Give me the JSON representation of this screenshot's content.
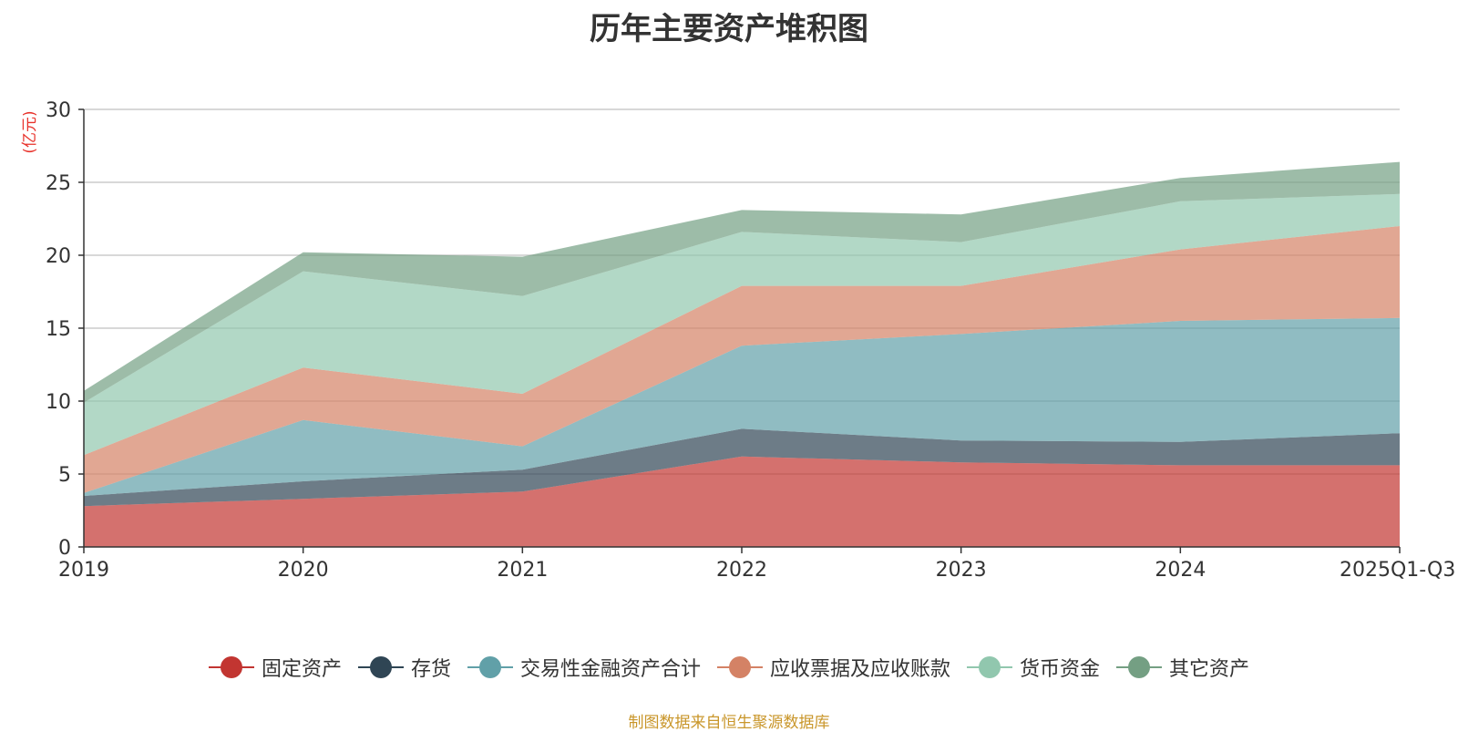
{
  "chart_data": {
    "type": "area",
    "stacked": true,
    "title": "历年主要资产堆积图",
    "ylabel": "(亿元)",
    "xlabel": "",
    "categories": [
      "2019",
      "2020",
      "2021",
      "2022",
      "2023",
      "2024",
      "2025Q1-Q3"
    ],
    "ylim": [
      0,
      30
    ],
    "yticks": [
      0,
      5,
      10,
      15,
      20,
      25,
      30
    ],
    "grid": true,
    "legend_position": "bottom",
    "series": [
      {
        "name": "固定资产",
        "color": "#c23531",
        "values": [
          2.8,
          3.3,
          3.8,
          6.2,
          5.8,
          5.6,
          5.6
        ]
      },
      {
        "name": "存货",
        "color": "#2f4554",
        "values": [
          0.7,
          1.2,
          1.5,
          1.9,
          1.5,
          1.6,
          2.2
        ]
      },
      {
        "name": "交易性金融资产合计",
        "color": "#61a0a8",
        "values": [
          0.2,
          4.2,
          1.6,
          5.7,
          7.3,
          8.3,
          7.9
        ]
      },
      {
        "name": "应收票据及应收账款",
        "color": "#d48265",
        "values": [
          2.6,
          3.6,
          3.6,
          4.1,
          3.3,
          4.9,
          6.3
        ]
      },
      {
        "name": "货币资金",
        "color": "#91c7ae",
        "values": [
          3.6,
          6.6,
          6.7,
          3.7,
          3.0,
          3.3,
          2.2
        ]
      },
      {
        "name": "其它资产",
        "color": "#749f83",
        "values": [
          0.8,
          1.3,
          2.7,
          1.5,
          1.9,
          1.6,
          2.2
        ]
      }
    ]
  },
  "source_note": "制图数据来自恒生聚源数据库"
}
